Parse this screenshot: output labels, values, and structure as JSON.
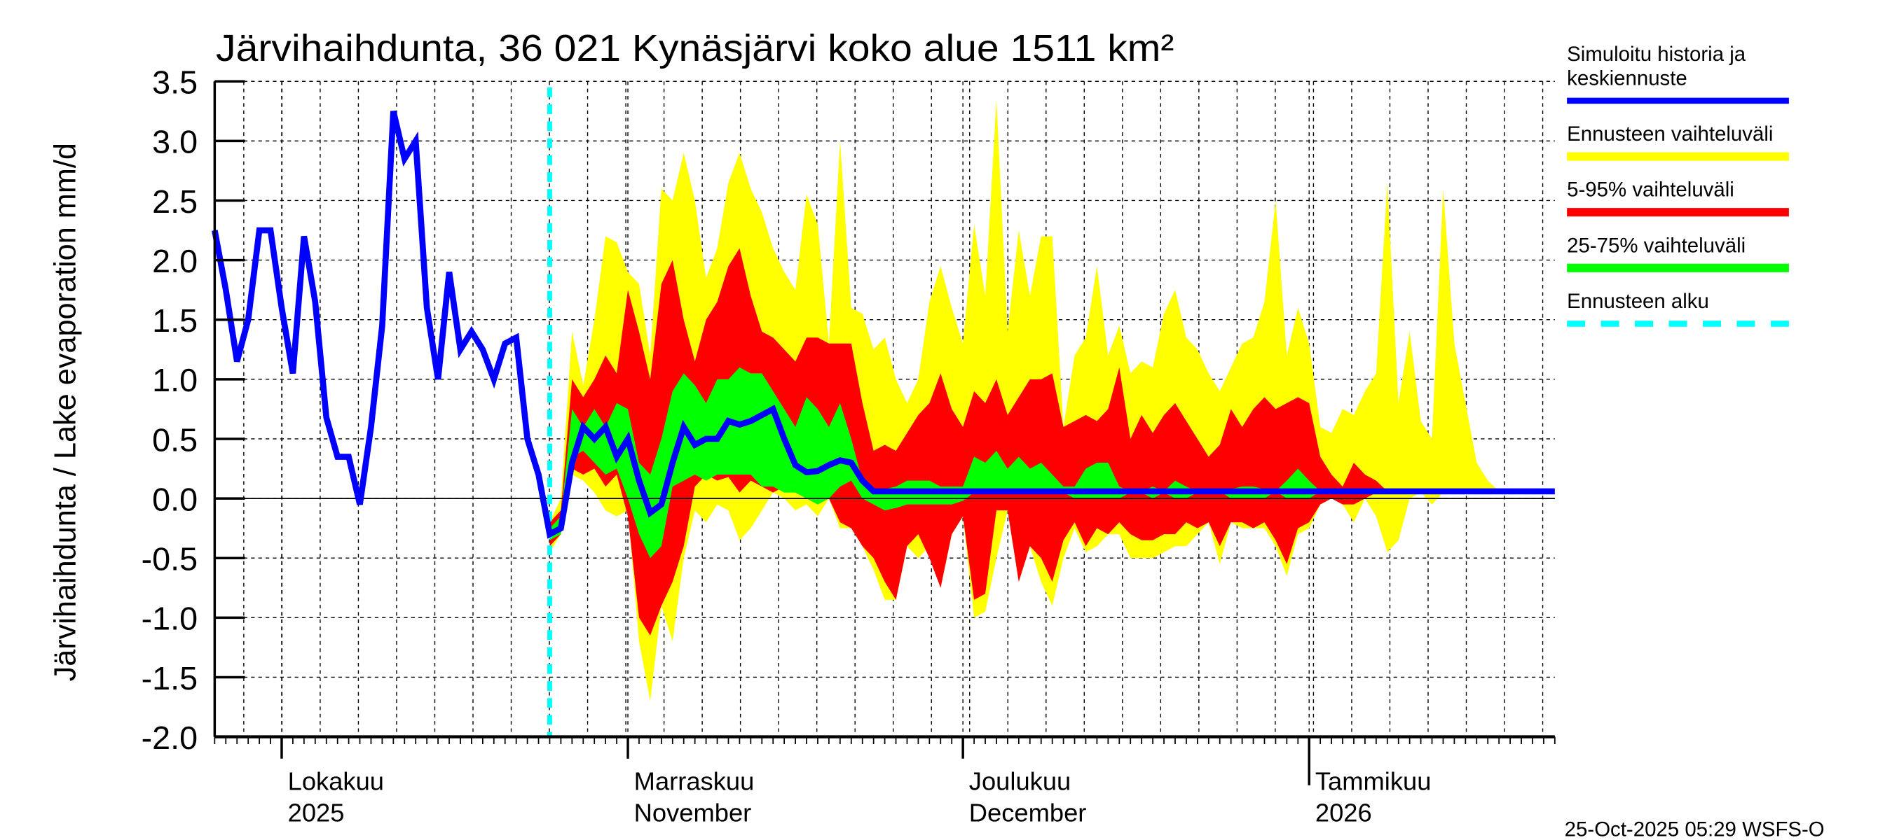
{
  "chart_data": {
    "type": "area",
    "title": "Järvihaihdunta, 36 021 Kynäsjärvi koko alue 1511 km²",
    "ylabel": "Järvihaihdunta / Lake evaporation   mm/d",
    "xlabel": "",
    "ylim": [
      -2.0,
      3.5
    ],
    "yticks": [
      "3.5",
      "3.0",
      "2.5",
      "2.0",
      "1.5",
      "1.0",
      "0.5",
      "0.0",
      "-0.5",
      "-1.0",
      "-1.5",
      "-2.0"
    ],
    "ytick_values": [
      3.5,
      3.0,
      2.5,
      2.0,
      1.5,
      1.0,
      0.5,
      0.0,
      -0.5,
      -1.0,
      -1.5,
      -2.0
    ],
    "x_start_date": "2025-09-25",
    "x_range_days": [
      0,
      120
    ],
    "forecast_start_day": 30,
    "month_labels": [
      {
        "day": 6,
        "line1": "Lokakuu",
        "line2": "2025"
      },
      {
        "day": 37,
        "line1": "Marraskuu",
        "line2": "November"
      },
      {
        "day": 67,
        "line1": "Joulukuu",
        "line2": "December"
      },
      {
        "day": 98,
        "line1": "Tammikuu",
        "line2": "2026"
      }
    ],
    "grid": true,
    "legend_position": "right",
    "legend": [
      {
        "label_line1": "Simuloitu historia ja",
        "label_line2": "keskiennuste",
        "color": "#0000ff",
        "style": "line"
      },
      {
        "label_line1": "Ennusteen vaihteluväli",
        "color": "#ffff00",
        "style": "band"
      },
      {
        "label_line1": "5-95% vaihteluväli",
        "color": "#ff0000",
        "style": "band"
      },
      {
        "label_line1": "25-75% vaihteluväli",
        "color": "#00ff00",
        "style": "band"
      },
      {
        "label_line1": "Ennusteen alku",
        "color": "#00ffff",
        "style": "dashed"
      }
    ],
    "series": {
      "median": [
        2.25,
        1.75,
        1.15,
        1.5,
        2.25,
        2.25,
        1.6,
        1.05,
        2.2,
        1.65,
        0.68,
        0.35,
        0.35,
        -0.05,
        0.6,
        1.45,
        3.25,
        2.85,
        3.0,
        1.6,
        1.0,
        1.9,
        1.25,
        1.4,
        1.25,
        1.0,
        1.3,
        1.35,
        0.5,
        0.2,
        -0.3,
        -0.25,
        0.3,
        0.6,
        0.5,
        0.6,
        0.35,
        0.5,
        0.15,
        -0.12,
        -0.05,
        0.3,
        0.6,
        0.45,
        0.5,
        0.5,
        0.65,
        0.62,
        0.65,
        0.7,
        0.75,
        0.5,
        0.28,
        0.22,
        0.23,
        0.28,
        0.32,
        0.3,
        0.15,
        0.06,
        0.06,
        0.06,
        0.06,
        0.06,
        0.06,
        0.06,
        0.06,
        0.06,
        0.06,
        0.06,
        0.06,
        0.06,
        0.06,
        0.06,
        0.06,
        0.06,
        0.06,
        0.06,
        0.06,
        0.06,
        0.06,
        0.06,
        0.06,
        0.06,
        0.06,
        0.06,
        0.06,
        0.06,
        0.06,
        0.06,
        0.06,
        0.06,
        0.06,
        0.06,
        0.06,
        0.06,
        0.06,
        0.06,
        0.06,
        0.06,
        0.06,
        0.06,
        0.06,
        0.06,
        0.06,
        0.06,
        0.06,
        0.06,
        0.06,
        0.06,
        0.06,
        0.06,
        0.06,
        0.06,
        0.06,
        0.06,
        0.06,
        0.06,
        0.06,
        0.06,
        0.06
      ],
      "band_start_day": 30,
      "range_max": [
        -0.2,
        0.0,
        1.4,
        0.95,
        1.5,
        2.2,
        2.15,
        1.9,
        1.8,
        1.2,
        2.6,
        2.5,
        2.9,
        2.5,
        1.85,
        2.1,
        2.65,
        2.9,
        2.6,
        2.4,
        2.1,
        1.9,
        1.75,
        2.55,
        2.3,
        1.3,
        3.0,
        1.6,
        1.55,
        1.25,
        1.35,
        1.0,
        0.8,
        1.0,
        1.65,
        1.95,
        1.6,
        1.3,
        2.3,
        1.7,
        3.35,
        1.4,
        2.25,
        1.7,
        2.2,
        2.2,
        0.6,
        1.2,
        1.35,
        1.95,
        1.2,
        1.45,
        1.05,
        1.15,
        1.1,
        1.55,
        1.75,
        1.35,
        1.25,
        1.05,
        0.9,
        1.1,
        1.3,
        1.35,
        1.65,
        2.5,
        1.2,
        1.6,
        1.3,
        0.6,
        0.55,
        0.75,
        0.7,
        0.9,
        1.05,
        2.65,
        0.8,
        1.4,
        0.65,
        0.5,
        2.6,
        1.3,
        0.8,
        0.3,
        0.15,
        0.06,
        0.06,
        0.06,
        0.06,
        0.06
      ],
      "range_min": [
        -0.45,
        -0.3,
        0.2,
        0.15,
        0.05,
        -0.1,
        -0.15,
        -0.1,
        -1.2,
        -1.7,
        -0.9,
        -1.2,
        -0.5,
        -0.1,
        -0.2,
        -0.05,
        -0.1,
        -0.35,
        -0.25,
        -0.1,
        0.05,
        0.0,
        -0.1,
        -0.05,
        -0.15,
        0.0,
        -0.25,
        -0.25,
        -0.4,
        -0.6,
        -0.85,
        -0.85,
        -0.4,
        -0.5,
        -0.4,
        -0.75,
        -0.3,
        -0.15,
        -1.0,
        -0.95,
        -0.5,
        -0.1,
        -0.7,
        -0.4,
        -0.7,
        -0.9,
        -0.5,
        -0.25,
        -0.45,
        -0.4,
        -0.3,
        -0.3,
        -0.5,
        -0.5,
        -0.5,
        -0.45,
        -0.4,
        -0.4,
        -0.3,
        -0.2,
        -0.55,
        -0.2,
        -0.25,
        -0.25,
        -0.25,
        -0.4,
        -0.65,
        -0.3,
        -0.25,
        -0.05,
        0.0,
        -0.05,
        -0.2,
        0.0,
        -0.15,
        -0.45,
        -0.35,
        0.0,
        0.05,
        -0.05,
        0.05,
        0.05,
        0.05,
        0.05,
        0.05,
        0.06,
        0.06,
        0.06,
        0.06,
        0.06
      ],
      "p95": [
        -0.2,
        -0.1,
        1.0,
        0.85,
        1.0,
        1.2,
        1.05,
        1.75,
        1.4,
        1.0,
        1.8,
        2.0,
        1.5,
        1.15,
        1.5,
        1.65,
        1.95,
        2.1,
        1.7,
        1.4,
        1.35,
        1.25,
        1.15,
        1.35,
        1.35,
        1.3,
        1.3,
        1.3,
        0.8,
        0.4,
        0.45,
        0.4,
        0.55,
        0.7,
        0.8,
        1.05,
        0.75,
        0.6,
        0.9,
        0.8,
        1.0,
        0.7,
        0.85,
        1.0,
        1.0,
        1.05,
        0.6,
        0.65,
        0.7,
        0.65,
        0.75,
        1.1,
        0.5,
        0.7,
        0.55,
        0.7,
        0.8,
        0.65,
        0.5,
        0.35,
        0.45,
        0.75,
        0.6,
        0.75,
        0.85,
        0.75,
        0.8,
        0.85,
        0.8,
        0.35,
        0.2,
        0.1,
        0.3,
        0.2,
        0.15,
        0.06,
        0.06,
        0.06,
        0.06,
        0.06,
        0.06,
        0.06,
        0.06,
        0.06,
        0.06,
        0.06,
        0.06,
        0.06,
        0.06,
        0.06
      ],
      "p5": [
        -0.4,
        -0.3,
        0.25,
        0.2,
        0.25,
        0.1,
        0.2,
        -0.15,
        -1.0,
        -1.15,
        -0.9,
        -0.7,
        -0.4,
        0.1,
        0.2,
        0.15,
        0.18,
        0.05,
        0.15,
        0.1,
        0.05,
        0.1,
        0.05,
        0.0,
        -0.05,
        0.0,
        -0.2,
        -0.25,
        -0.4,
        -0.5,
        -0.7,
        -0.85,
        -0.4,
        -0.3,
        -0.5,
        -0.75,
        -0.3,
        -0.15,
        -0.85,
        -0.8,
        -0.1,
        -0.1,
        -0.7,
        -0.4,
        -0.5,
        -0.7,
        -0.35,
        -0.2,
        -0.4,
        -0.25,
        -0.3,
        -0.2,
        -0.3,
        -0.35,
        -0.35,
        -0.3,
        -0.3,
        -0.2,
        -0.25,
        -0.2,
        -0.4,
        -0.2,
        -0.2,
        -0.25,
        -0.2,
        -0.35,
        -0.55,
        -0.25,
        -0.2,
        -0.05,
        0.0,
        -0.05,
        -0.05,
        0.0,
        0.05,
        0.06,
        0.06,
        0.06,
        0.06,
        0.06,
        0.06,
        0.06,
        0.06,
        0.06,
        0.06,
        0.06,
        0.06,
        0.06,
        0.06,
        0.06
      ],
      "p75": [
        -0.25,
        -0.15,
        0.75,
        0.6,
        0.75,
        0.6,
        0.8,
        0.75,
        0.3,
        0.2,
        0.5,
        0.9,
        1.05,
        0.95,
        0.8,
        1.0,
        1.0,
        1.1,
        1.05,
        1.05,
        0.9,
        0.75,
        0.6,
        0.85,
        0.75,
        0.6,
        0.8,
        0.5,
        0.15,
        0.06,
        0.08,
        0.1,
        0.15,
        0.15,
        0.15,
        0.1,
        0.1,
        0.1,
        0.35,
        0.3,
        0.4,
        0.25,
        0.35,
        0.25,
        0.3,
        0.2,
        0.1,
        0.1,
        0.25,
        0.3,
        0.3,
        0.1,
        0.06,
        0.06,
        0.1,
        0.06,
        0.15,
        0.1,
        0.06,
        0.06,
        0.06,
        0.08,
        0.1,
        0.1,
        0.08,
        0.06,
        0.15,
        0.25,
        0.15,
        0.06,
        0.06,
        0.06,
        0.06,
        0.06,
        0.06,
        0.06,
        0.06,
        0.06,
        0.06,
        0.06,
        0.06,
        0.06,
        0.06,
        0.06,
        0.06,
        0.06,
        0.06,
        0.06,
        0.06,
        0.06
      ],
      "p25": [
        -0.35,
        -0.3,
        0.35,
        0.4,
        0.3,
        0.2,
        0.25,
        0.0,
        -0.3,
        -0.5,
        -0.4,
        0.1,
        0.15,
        0.2,
        0.15,
        0.2,
        0.2,
        0.2,
        0.2,
        0.1,
        0.1,
        0.05,
        0.05,
        0.0,
        -0.05,
        0.0,
        0.1,
        0.15,
        0.0,
        -0.05,
        -0.1,
        -0.08,
        -0.05,
        -0.05,
        -0.05,
        -0.05,
        -0.05,
        -0.02,
        0.05,
        0.05,
        0.05,
        0.05,
        0.05,
        0.05,
        0.05,
        0.05,
        0.05,
        0.0,
        0.0,
        0.0,
        0.0,
        0.0,
        0.05,
        0.05,
        0.0,
        0.05,
        0.0,
        0.0,
        0.05,
        0.05,
        0.06,
        0.0,
        0.0,
        0.0,
        0.0,
        0.06,
        0.0,
        0.0,
        0.0,
        0.06,
        0.06,
        0.06,
        0.06,
        0.06,
        0.06,
        0.06,
        0.06,
        0.06,
        0.06,
        0.06,
        0.06,
        0.06,
        0.06,
        0.06,
        0.06,
        0.06,
        0.06,
        0.06,
        0.06,
        0.06
      ]
    },
    "colors": {
      "median": "#0000ff",
      "range": "#ffff00",
      "p5_95": "#ff0000",
      "p25_75": "#00ff00",
      "forecast_start": "#00ffff"
    }
  },
  "footer": "25-Oct-2025 05:29 WSFS-O"
}
